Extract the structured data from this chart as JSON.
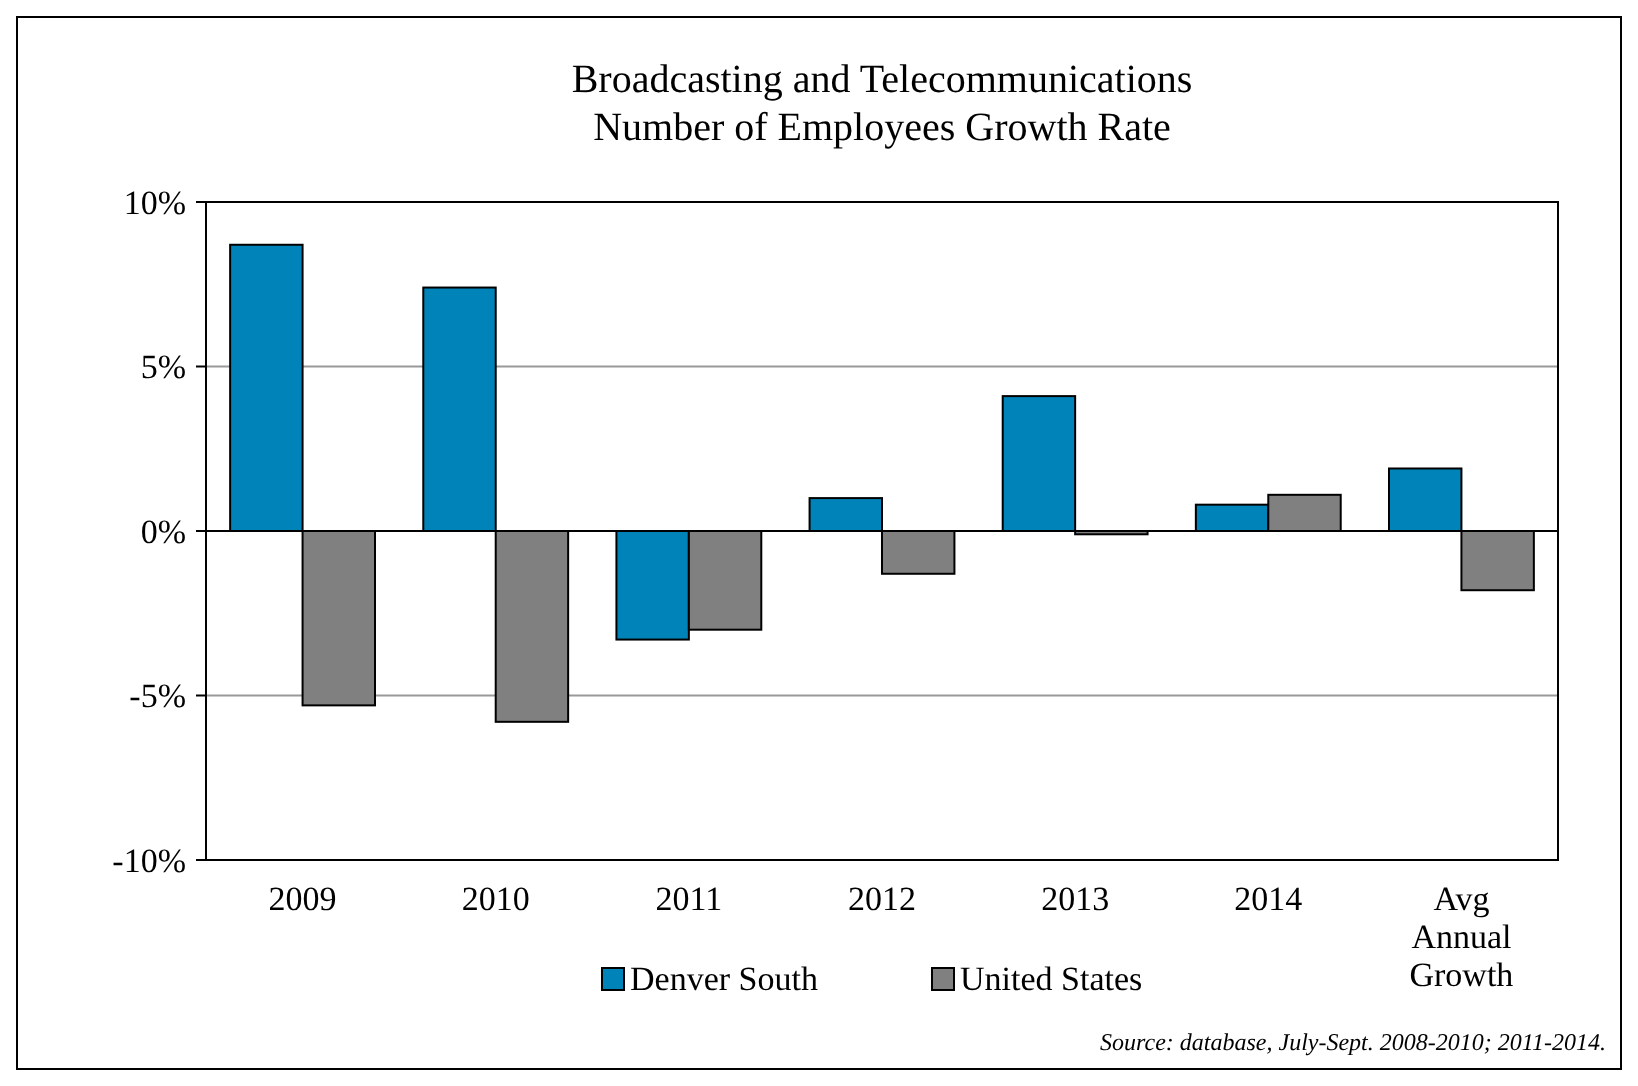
{
  "chart_data": {
    "type": "bar",
    "title": "Broadcasting and Telecommunications\nNumber of Employees Growth Rate",
    "categories": [
      "2009",
      "2010",
      "2011",
      "2012",
      "2013",
      "2014",
      "Avg Annual Growth"
    ],
    "series": [
      {
        "name": "Denver South",
        "color": "#0083b8",
        "values": [
          8.7,
          7.4,
          -3.3,
          1.0,
          4.1,
          0.8,
          1.9
        ]
      },
      {
        "name": "United States",
        "color": "#808080",
        "values": [
          -5.3,
          -5.8,
          -3.0,
          -1.3,
          -0.1,
          1.1,
          -1.8
        ]
      }
    ],
    "ylim": [
      -10,
      10
    ],
    "yticks": [
      {
        "value": -10,
        "label": "-10%"
      },
      {
        "value": -5,
        "label": "-5%"
      },
      {
        "value": 0,
        "label": "0%"
      },
      {
        "value": 5,
        "label": "5%"
      },
      {
        "value": 10,
        "label": "10%"
      }
    ],
    "grid": "y",
    "legend": "bottom",
    "annotations": [
      "Source: database, July-Sept. 2008-2010; 2011-2014."
    ]
  }
}
